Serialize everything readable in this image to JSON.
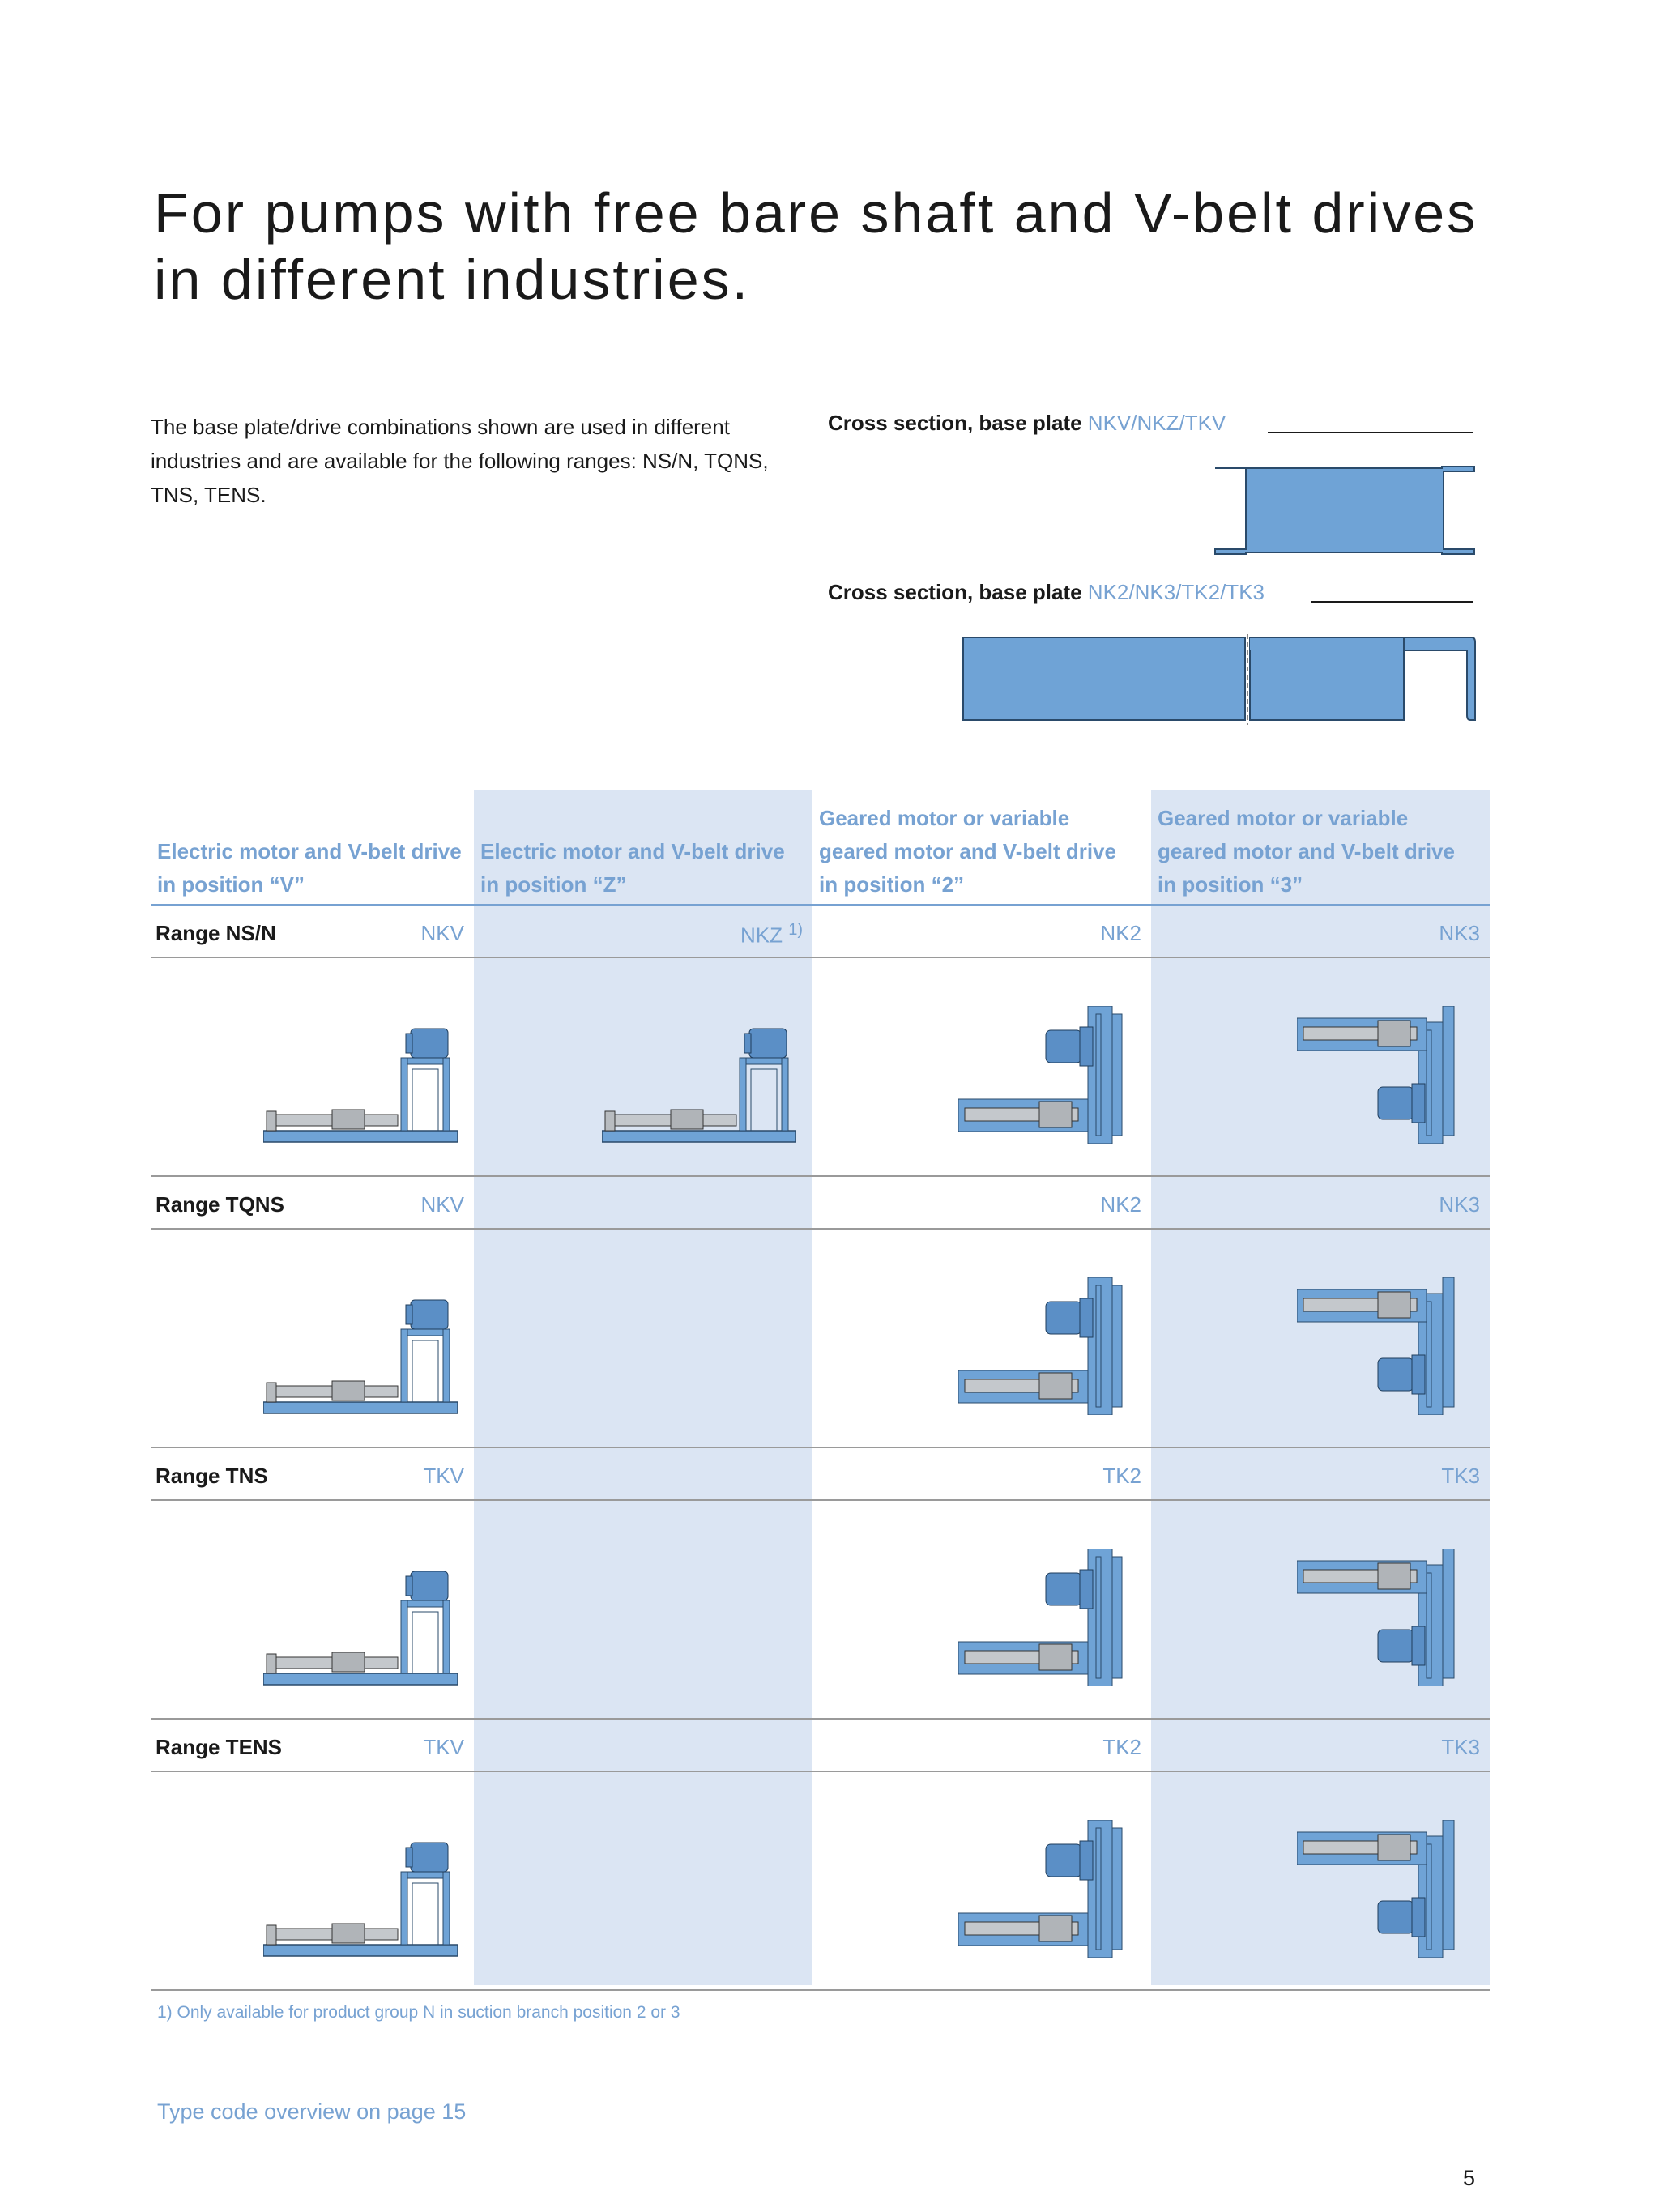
{
  "title": [
    "For pumps with free bare shaft and V-belt drives",
    "in different industries."
  ],
  "intro": "The base plate/drive combinations shown are used in different industries and are available for the following ranges: NS/N, TQNS, TNS, TENS.",
  "cross_sections": [
    {
      "label": "Cross section, base plate",
      "code": "NKV/NKZ/TKV"
    },
    {
      "label": "Cross section, base plate",
      "code": "NK2/NK3/TK2/TK3"
    }
  ],
  "table": {
    "headers": [
      "Electric motor and V-belt drive in position “V”",
      "Electric motor and V-belt drive in position “Z”",
      "Geared motor or variable geared motor and V-belt drive in position “2”",
      "Geared motor or variable geared motor and V-belt drive in position “3”"
    ],
    "rows": [
      {
        "range": "Range NS/N",
        "codes": [
          "NKV",
          "NKZ",
          "NK2",
          "NK3"
        ],
        "note": "1)"
      },
      {
        "range": "Range TQNS",
        "codes": [
          "NKV",
          null,
          "NK2",
          "NK3"
        ]
      },
      {
        "range": "Range TNS",
        "codes": [
          "TKV",
          null,
          "TK2",
          "TK3"
        ]
      },
      {
        "range": "Range TENS",
        "codes": [
          "TKV",
          null,
          "TK2",
          "TK3"
        ]
      }
    ]
  },
  "footnote": "1) Only available for product group N in suction branch position 2 or 3",
  "link": "Type code overview on page 15",
  "page_number": "5"
}
